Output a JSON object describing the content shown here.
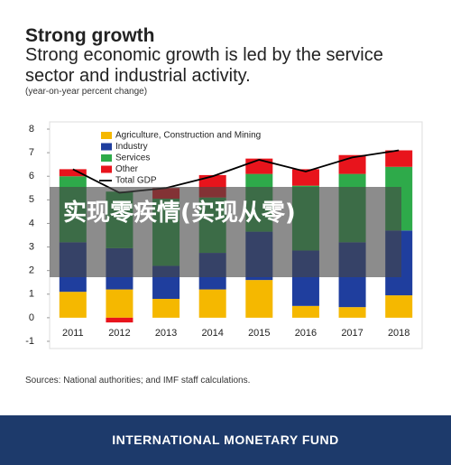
{
  "title": "Strong growth",
  "subtitle": "Strong economic growth is led by the service sector and industrial activity.",
  "unit_note": "(year-on-year percent change)",
  "chart_data": {
    "type": "bar",
    "stacked": true,
    "categories": [
      "2011",
      "2012",
      "2013",
      "2014",
      "2015",
      "2016",
      "2017",
      "2018"
    ],
    "series": [
      {
        "name": "Agriculture, Construction and Mining",
        "color": "#f5b800",
        "values": [
          1.1,
          1.2,
          0.8,
          1.2,
          1.6,
          0.5,
          0.45,
          0.95
        ]
      },
      {
        "name": "Industry",
        "color": "#1f3e9e",
        "values": [
          2.1,
          1.75,
          1.4,
          1.55,
          2.05,
          2.35,
          2.75,
          2.75
        ]
      },
      {
        "name": "Services",
        "color": "#2eaa4a",
        "values": [
          2.8,
          2.4,
          2.85,
          2.35,
          2.45,
          2.75,
          2.9,
          2.7
        ]
      },
      {
        "name": "Other",
        "color": "#e8141c",
        "values": [
          0.3,
          -0.2,
          0.45,
          0.95,
          0.65,
          0.7,
          0.8,
          0.7
        ]
      },
      {
        "name": "Total GDP",
        "color": "#000000",
        "mark": "line",
        "values": [
          6.3,
          5.3,
          5.5,
          6.0,
          6.7,
          6.2,
          6.8,
          7.1
        ]
      }
    ],
    "ylim": [
      -1,
      8
    ],
    "yticks": [
      -1,
      0,
      1,
      2,
      3,
      4,
      5,
      6,
      7,
      8
    ]
  },
  "source": "Sources: National authorities; and IMF staff calculations.",
  "watermark": "实现零疾情(实现从零)",
  "footer": "INTERNATIONAL MONETARY FUND"
}
